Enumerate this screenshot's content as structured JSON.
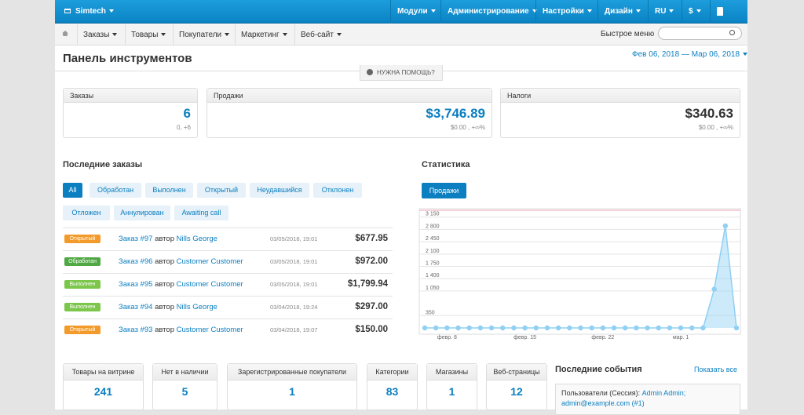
{
  "topbar": {
    "brand": "Simtech",
    "menu": [
      "Модули",
      "Администрирование",
      "Настройки",
      "Дизайн",
      "RU",
      "$"
    ]
  },
  "navbar": {
    "menu": [
      "Заказы",
      "Товары",
      "Покупатели",
      "Маркетинг",
      "Веб-сайт"
    ],
    "quick_menu": "Быстрое меню"
  },
  "header": {
    "title": "Панель инструментов",
    "date_range": "Фев 06, 2018 — Мар 06, 2018",
    "help": "НУЖНА ПОМОЩЬ?"
  },
  "summary": [
    {
      "label": "Заказы",
      "value": "6",
      "sub": "0, +6",
      "color": "#0b7fc0"
    },
    {
      "label": "Продажи",
      "value": "$3,746.89",
      "sub": "$0.00 , +∞%",
      "color": "#0b7fc0"
    },
    {
      "label": "Налоги",
      "value": "$340.63",
      "sub": "$0.00 , +∞%",
      "color": "#333333"
    }
  ],
  "recent_orders": {
    "title": "Последние заказы",
    "filters": [
      "All",
      "Обработан",
      "Выполнен",
      "Открытый",
      "Неудавшийся",
      "Отклонен",
      "Отложен",
      "Аннулирован",
      "Awaiting call"
    ],
    "orders": [
      {
        "status": "Открытый",
        "status_color": "#f39b2a",
        "order": "Заказ #97",
        "by": "автор",
        "customer": "Nills George",
        "date": "03/05/2018, 19:01",
        "total": "$677.95"
      },
      {
        "status": "Обработан",
        "status_color": "#4fa843",
        "order": "Заказ #96",
        "by": "автор",
        "customer": "Customer Customer",
        "date": "03/05/2018, 19:01",
        "total": "$972.00"
      },
      {
        "status": "Выполнен",
        "status_color": "#7cc64c",
        "order": "Заказ #95",
        "by": "автор",
        "customer": "Customer Customer",
        "date": "03/05/2018, 19:01",
        "total": "$1,799.94"
      },
      {
        "status": "Выполнен",
        "status_color": "#7cc64c",
        "order": "Заказ #94",
        "by": "автор",
        "customer": "Nills George",
        "date": "03/04/2018, 19:24",
        "total": "$297.00"
      },
      {
        "status": "Открытый",
        "status_color": "#f39b2a",
        "order": "Заказ #93",
        "by": "автор",
        "customer": "Customer Customer",
        "date": "03/04/2018, 19:07",
        "total": "$150.00"
      }
    ]
  },
  "statistics": {
    "tab": "Продажи"
  },
  "chart_data": {
    "type": "line",
    "title": "Статистика",
    "categories": [
      null,
      null,
      "февр. 8",
      null,
      null,
      null,
      null,
      null,
      null,
      "февр. 15",
      null,
      null,
      null,
      null,
      null,
      null,
      "февр. 22",
      null,
      null,
      null,
      null,
      null,
      null,
      "мар. 1",
      null,
      null,
      null,
      null,
      null
    ],
    "values": [
      0,
      0,
      0,
      0,
      0,
      0,
      0,
      0,
      0,
      0,
      0,
      0,
      0,
      0,
      0,
      0,
      0,
      0,
      0,
      0,
      0,
      0,
      0,
      0,
      0,
      0,
      1100,
      2900,
      0
    ],
    "color": "#8fd0f3",
    "ylim": [
      0,
      3300
    ],
    "yticks": [
      350,
      {
        "value": 1050,
        "label": "1 050"
      },
      {
        "value": 1400,
        "label": "1 400"
      },
      {
        "value": 1750,
        "label": "1 750"
      },
      {
        "value": 2100,
        "label": "2 100"
      },
      {
        "value": 2450,
        "label": "2 450"
      },
      {
        "value": 2800,
        "label": "2 800"
      },
      {
        "value": 3150,
        "label": "3 150"
      }
    ],
    "grid": true
  },
  "stats": [
    {
      "label": "Товары на витрине",
      "value": "241"
    },
    {
      "label": "Нет в наличии",
      "value": "5"
    },
    {
      "label": "Зарегистрированные покупатели",
      "value": "1"
    },
    {
      "label": "Категории",
      "value": "83"
    },
    {
      "label": "Магазины",
      "value": "1"
    },
    {
      "label": "Веб-страницы",
      "value": "12"
    }
  ],
  "events": {
    "title": "Последние события",
    "show_all": "Показать все",
    "items": [
      {
        "text": "Пользователи (Сессия):",
        "user": "Admin Admin;",
        "email": "admin@example.com (#1)"
      }
    ]
  }
}
